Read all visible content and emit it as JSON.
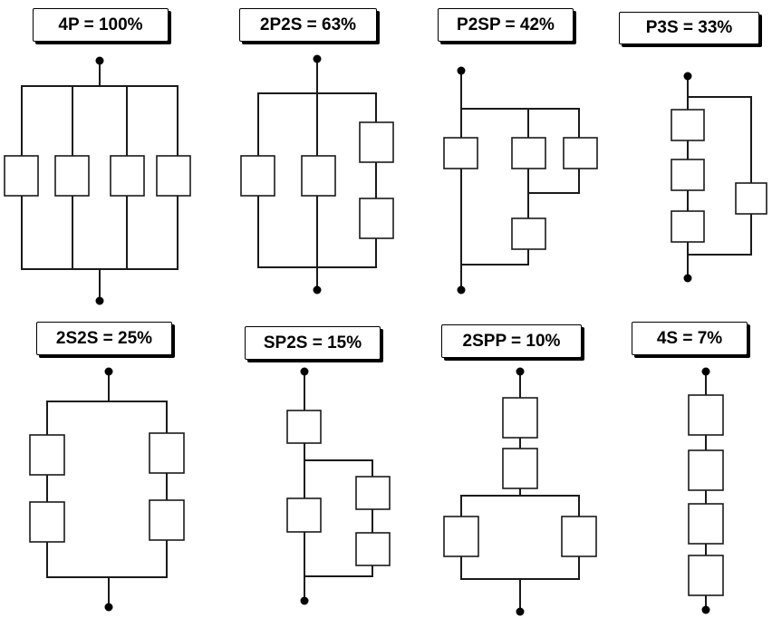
{
  "configurations": [
    {
      "id": "4P",
      "label": "4P = 100%",
      "name": "4P",
      "percent": 100
    },
    {
      "id": "2P2S",
      "label": "2P2S = 63%",
      "name": "2P2S",
      "percent": 63
    },
    {
      "id": "P2SP",
      "label": "P2SP = 42%",
      "name": "P2SP",
      "percent": 42
    },
    {
      "id": "P3S",
      "label": "P3S = 33%",
      "name": "P3S",
      "percent": 33
    },
    {
      "id": "2S2S",
      "label": "2S2S = 25%",
      "name": "2S2S",
      "percent": 25
    },
    {
      "id": "SP2S",
      "label": "SP2S = 15%",
      "name": "SP2S",
      "percent": 15
    },
    {
      "id": "2SPP",
      "label": "2SPP = 10%",
      "name": "2SPP",
      "percent": 10
    },
    {
      "id": "4S",
      "label": "4S = 7%",
      "name": "4S",
      "percent": 7
    }
  ]
}
